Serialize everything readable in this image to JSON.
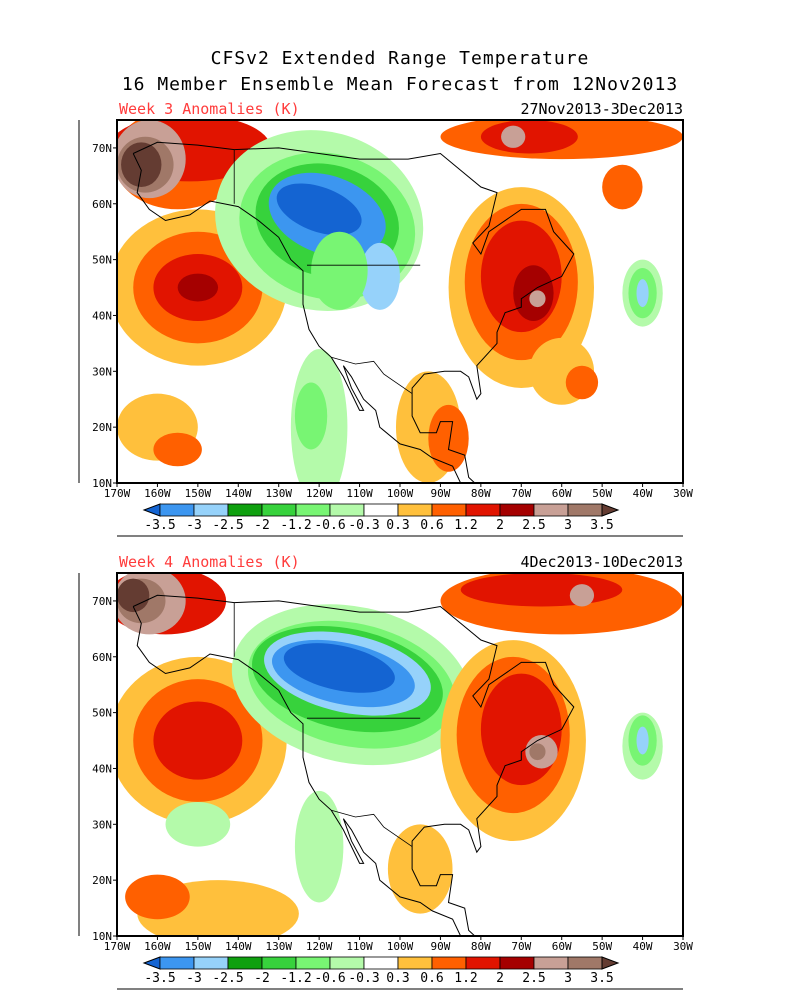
{
  "title": {
    "line1": "CFSv2 Extended Range Temperature",
    "line2": "16 Member Ensemble Mean Forecast from 12Nov2013"
  },
  "panels": [
    {
      "label": "Week 3 Anomalies (K)",
      "dates": "27Nov2013-3Dec2013"
    },
    {
      "label": "Week 4 Anomalies (K)",
      "dates": "4Dec2013-10Dec2013"
    }
  ],
  "lon_ticks": [
    "170W",
    "160W",
    "150W",
    "140W",
    "130W",
    "120W",
    "110W",
    "100W",
    "90W",
    "80W",
    "70W",
    "60W",
    "50W",
    "40W",
    "30W"
  ],
  "lat_ticks": [
    "10N",
    "20N",
    "30N",
    "40N",
    "50N",
    "60N",
    "70N"
  ],
  "colorbar": {
    "levels": [
      "-3.5",
      "-3",
      "-2.5",
      "-2",
      "-1.2",
      "-0.6",
      "-0.3",
      "0.3",
      "0.6",
      "1.2",
      "2",
      "2.5",
      "3",
      "3.5"
    ],
    "colors": [
      "#1464d2",
      "#3c96f0",
      "#96d2fa",
      "#0fa00f",
      "#37d23c",
      "#78f573",
      "#b4faaa",
      "#ffffff",
      "#ffc03c",
      "#ff6000",
      "#e11400",
      "#a50000",
      "#c8a096",
      "#a07868",
      "#643c32"
    ]
  },
  "label_color": "#ff3c3c"
}
